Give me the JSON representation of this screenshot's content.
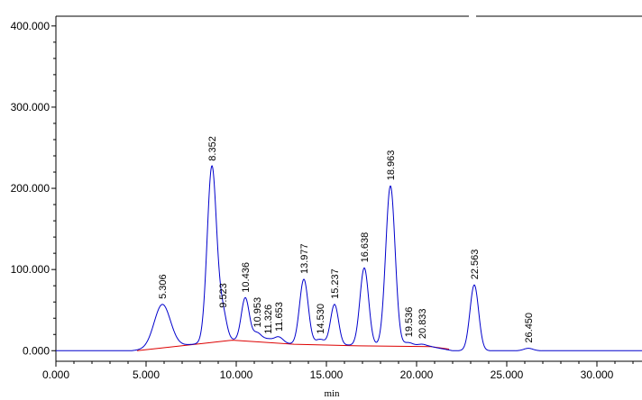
{
  "chart_data": {
    "type": "line",
    "title": "",
    "xlabel": "min",
    "ylabel": "",
    "xlim": [
      0,
      32.5
    ],
    "ylim": [
      -13,
      412
    ],
    "x_ticks": [
      "0.000",
      "5.000",
      "10.000",
      "15.000",
      "20.000",
      "25.000",
      "30.000"
    ],
    "x_tick_values": [
      0,
      5,
      10,
      15,
      20,
      25,
      30
    ],
    "y_ticks": [
      "0.000",
      "100.000",
      "200.000",
      "300.000",
      "400.000"
    ],
    "y_tick_values": [
      0,
      100,
      200,
      300,
      400
    ],
    "grid": false,
    "colors": {
      "trace": "#0000cc",
      "baseline": "#dd0000",
      "axis": "#000000"
    },
    "peaks": [
      {
        "label": "5.306",
        "time": 5.9,
        "height": 57
      },
      {
        "label": "8.352",
        "time": 8.65,
        "height": 227
      },
      {
        "label": "9.523",
        "time": 9.25,
        "height": 46
      },
      {
        "label": "10.436",
        "time": 10.5,
        "height": 65
      },
      {
        "label": "10.953",
        "time": 11.15,
        "height": 22
      },
      {
        "label": "11.326",
        "time": 11.75,
        "height": 14
      },
      {
        "label": "11.653",
        "time": 12.35,
        "height": 17
      },
      {
        "label": "13.977",
        "time": 13.75,
        "height": 88
      },
      {
        "label": "14.530",
        "time": 14.65,
        "height": 14
      },
      {
        "label": "15.237",
        "time": 15.45,
        "height": 57
      },
      {
        "label": "16.638",
        "time": 17.1,
        "height": 102
      },
      {
        "label": "18.963",
        "time": 18.55,
        "height": 203
      },
      {
        "label": "19.536",
        "time": 19.55,
        "height": 10
      },
      {
        "label": "20.833",
        "time": 20.3,
        "height": 8
      },
      {
        "label": "22.563",
        "time": 23.2,
        "height": 81
      },
      {
        "label": "26.450",
        "time": 26.2,
        "height": 3
      }
    ],
    "baseline": [
      {
        "x": 4.5,
        "y": 0
      },
      {
        "x": 9.8,
        "y": 13
      },
      {
        "x": 13.2,
        "y": 8
      },
      {
        "x": 16.8,
        "y": 6
      },
      {
        "x": 20.8,
        "y": 5
      },
      {
        "x": 21.8,
        "y": 2
      }
    ]
  }
}
